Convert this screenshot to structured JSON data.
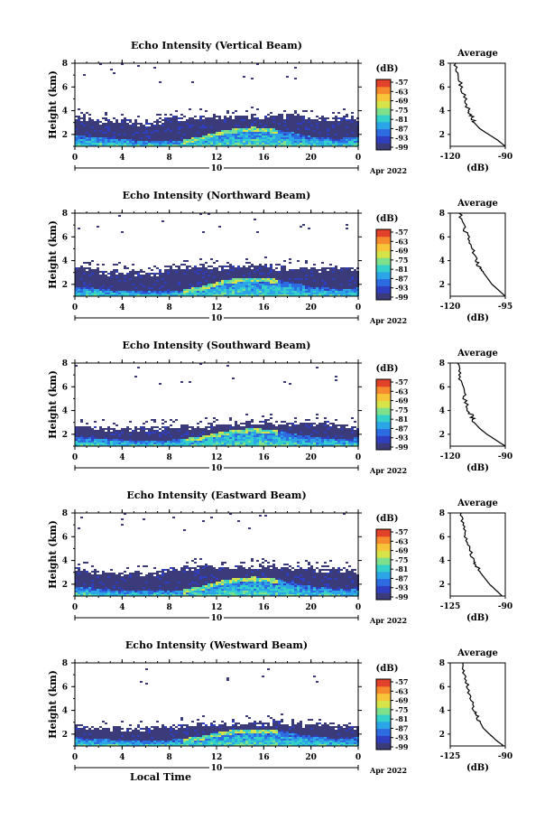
{
  "figure": {
    "common": {
      "x_ticks": [
        "0",
        "4",
        "8",
        "12",
        "16",
        "20",
        "0"
      ],
      "y_ticks": [
        "2",
        "4",
        "6",
        "8"
      ],
      "ylabel": "Height (km)",
      "day_label": "10",
      "date_label": "Apr 2022",
      "xlabel_bottom": "Local Time",
      "cbar_unit": "(dB)",
      "cbar_ticks": [
        "-57",
        "-63",
        "-69",
        "-75",
        "-81",
        "-87",
        "-93",
        "-99"
      ],
      "avg_title": "Average",
      "avg_xlabel": "(dB)",
      "avg_y_ticks": [
        "2",
        "4",
        "6",
        "8"
      ]
    },
    "colors": [
      "#3b3b7a",
      "#2f3fbf",
      "#2c6be0",
      "#2ba4e8",
      "#35d0c8",
      "#7ee08a",
      "#d6e44a",
      "#f7c43a",
      "#f58a2e",
      "#e2412a"
    ]
  },
  "chart_data": [
    {
      "type": "heatmap",
      "title": "Echo Intensity (Vertical Beam)",
      "xlabel": "Local Time",
      "ylabel": "Height (km)",
      "xlim": [
        0,
        24
      ],
      "ylim": [
        1,
        8
      ],
      "colorbar": {
        "unit": "dB",
        "range": [
          -99,
          -57
        ]
      },
      "layer_top_km": [
        3.6,
        3.5,
        3.3,
        3.3,
        3.3,
        3.2,
        3.1,
        3.2,
        3.6,
        3.6,
        3.7,
        3.7,
        3.7,
        3.7,
        3.7,
        3.7,
        3.7,
        3.7,
        3.7,
        3.7,
        3.7,
        3.6,
        3.6,
        3.6,
        3.5
      ],
      "bright_top_km": [
        2.0,
        1.9,
        1.9,
        1.8,
        1.7,
        1.6,
        1.6,
        1.6,
        1.5,
        1.6,
        1.8,
        2.0,
        2.3,
        2.5,
        2.6,
        2.7,
        2.6,
        2.5,
        2.3,
        2.1,
        1.9,
        1.8,
        1.7,
        1.8,
        1.9
      ],
      "average_profile": {
        "x_ticks": [
          "-120",
          "-90"
        ],
        "xlim": [
          -120,
          -90
        ],
        "height_km": [
          1,
          1.5,
          2,
          2.5,
          3,
          3.5,
          4,
          5,
          6,
          7,
          8
        ],
        "db": [
          -90,
          -94,
          -99,
          -104,
          -107,
          -108,
          -110,
          -112,
          -114,
          -116,
          -117
        ]
      }
    },
    {
      "type": "heatmap",
      "title": "Echo Intensity (Northward Beam)",
      "xlabel": "Local Time",
      "ylabel": "Height (km)",
      "xlim": [
        0,
        24
      ],
      "ylim": [
        1,
        8
      ],
      "colorbar": {
        "unit": "dB",
        "range": [
          -99,
          -57
        ]
      },
      "layer_top_km": [
        3.6,
        3.5,
        3.2,
        3.2,
        3.2,
        3.2,
        3.1,
        3.2,
        3.7,
        3.7,
        3.7,
        3.7,
        3.7,
        3.7,
        3.7,
        3.7,
        3.7,
        3.6,
        3.6,
        3.6,
        3.5,
        3.5,
        3.5,
        3.5,
        3.4
      ],
      "bright_top_km": [
        1.9,
        1.8,
        1.7,
        1.6,
        1.6,
        1.5,
        1.5,
        1.5,
        1.5,
        1.6,
        1.8,
        2.0,
        2.3,
        2.5,
        2.6,
        2.6,
        2.6,
        2.5,
        2.3,
        2.1,
        1.9,
        1.8,
        1.7,
        1.7,
        1.8
      ],
      "average_profile": {
        "x_ticks": [
          "-120",
          "-95"
        ],
        "xlim": [
          -120,
          -95
        ],
        "height_km": [
          1,
          1.5,
          2,
          2.5,
          3,
          3.5,
          4,
          5,
          6,
          7,
          8
        ],
        "db": [
          -95,
          -98,
          -101,
          -103,
          -105,
          -107,
          -108,
          -110,
          -112,
          -114,
          -116
        ]
      }
    },
    {
      "type": "heatmap",
      "title": "Echo Intensity (Southward Beam)",
      "xlabel": "Local Time",
      "ylabel": "Height (km)",
      "xlim": [
        0,
        24
      ],
      "ylim": [
        1,
        8
      ],
      "colorbar": {
        "unit": "dB",
        "range": [
          -99,
          -57
        ]
      },
      "layer_top_km": [
        2.8,
        2.7,
        2.6,
        2.6,
        2.6,
        2.7,
        2.7,
        2.7,
        2.8,
        2.8,
        2.8,
        2.9,
        2.9,
        3.0,
        3.0,
        3.1,
        3.1,
        3.1,
        3.2,
        3.2,
        3.2,
        3.1,
        3.0,
        2.9,
        2.7
      ],
      "bright_top_km": [
        1.8,
        1.8,
        1.7,
        1.7,
        1.6,
        1.6,
        1.6,
        1.6,
        1.6,
        1.7,
        1.8,
        2.0,
        2.2,
        2.4,
        2.5,
        2.6,
        2.5,
        2.4,
        2.2,
        2.0,
        1.9,
        1.8,
        1.7,
        1.7,
        1.8
      ],
      "average_profile": {
        "x_ticks": [
          "-120",
          "-90"
        ],
        "xlim": [
          -120,
          -90
        ],
        "height_km": [
          1,
          1.5,
          2,
          2.5,
          3,
          3.5,
          4,
          5,
          6,
          7,
          8
        ],
        "db": [
          -90,
          -95,
          -100,
          -104,
          -107,
          -108,
          -110,
          -112,
          -113,
          -115,
          -116
        ]
      }
    },
    {
      "type": "heatmap",
      "title": "Echo Intensity (Eastward Beam)",
      "xlabel": "Local Time",
      "ylabel": "Height (km)",
      "xlim": [
        0,
        24
      ],
      "ylim": [
        1,
        8
      ],
      "colorbar": {
        "unit": "dB",
        "range": [
          -99,
          -57
        ]
      },
      "layer_top_km": [
        3.5,
        3.4,
        3.1,
        3.1,
        3.1,
        3.1,
        3.0,
        3.1,
        3.5,
        3.6,
        3.7,
        3.7,
        3.7,
        3.7,
        3.7,
        3.7,
        3.6,
        3.6,
        3.6,
        3.5,
        3.5,
        3.4,
        3.4,
        3.4,
        3.3
      ],
      "bright_top_km": [
        1.9,
        1.8,
        1.7,
        1.6,
        1.6,
        1.5,
        1.5,
        1.5,
        1.5,
        1.6,
        1.8,
        2.0,
        2.3,
        2.5,
        2.6,
        2.7,
        2.6,
        2.5,
        2.3,
        2.1,
        1.9,
        1.8,
        1.7,
        1.7,
        1.8
      ],
      "average_profile": {
        "x_ticks": [
          "-125",
          "-90"
        ],
        "xlim": [
          -125,
          -90
        ],
        "height_km": [
          1,
          1.5,
          2,
          2.5,
          3,
          3.5,
          4,
          5,
          6,
          7,
          8
        ],
        "db": [
          -92,
          -96,
          -100,
          -103,
          -106,
          -108,
          -110,
          -113,
          -115,
          -117,
          -118
        ]
      }
    },
    {
      "type": "heatmap",
      "title": "Echo Intensity (Westward Beam)",
      "xlabel": "Local Time",
      "ylabel": "Height (km)",
      "xlim": [
        0,
        24
      ],
      "ylim": [
        1,
        8
      ],
      "colorbar": {
        "unit": "dB",
        "range": [
          -99,
          -57
        ]
      },
      "layer_top_km": [
        2.9,
        2.8,
        2.6,
        2.6,
        2.6,
        2.7,
        2.7,
        2.8,
        2.8,
        2.9,
        2.9,
        3.0,
        3.0,
        3.1,
        3.1,
        3.1,
        3.1,
        3.2,
        3.1,
        3.1,
        3.0,
        3.0,
        2.9,
        2.8,
        2.7
      ],
      "bright_top_km": [
        1.8,
        1.7,
        1.7,
        1.6,
        1.6,
        1.5,
        1.5,
        1.5,
        1.6,
        1.7,
        1.8,
        2.0,
        2.2,
        2.4,
        2.5,
        2.5,
        2.5,
        2.4,
        2.2,
        2.0,
        1.9,
        1.8,
        1.7,
        1.7,
        1.8
      ],
      "average_profile": {
        "x_ticks": [
          "-125",
          "-90"
        ],
        "xlim": [
          -125,
          -90
        ],
        "height_km": [
          1,
          1.5,
          2,
          2.5,
          3,
          3.5,
          4,
          5,
          6,
          7,
          8
        ],
        "db": [
          -91,
          -96,
          -100,
          -104,
          -106,
          -108,
          -110,
          -112,
          -114,
          -116,
          -117
        ]
      }
    }
  ]
}
